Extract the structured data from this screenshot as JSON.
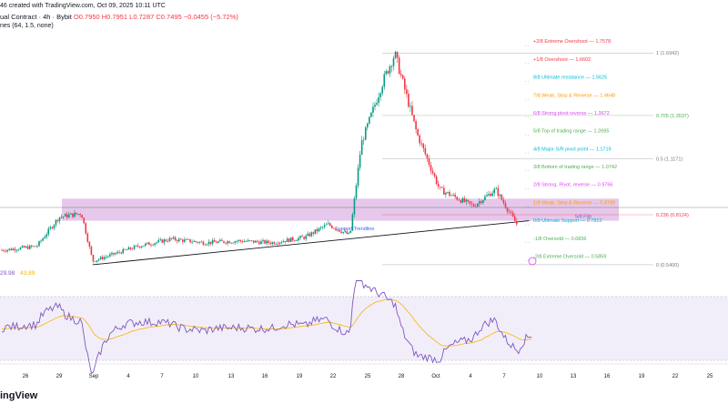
{
  "header": {
    "line1": "46 created with TradingView.com, Oct 09, 2025 10:11 UTC",
    "line2_title": "ual Contract · 4h · Bybit",
    "line2_ohlc": "O0.7950 H0.7951 L0.7287 C0.7495 −0.0455 (−5.72%)",
    "line3": "nes (64, 1.5, none)"
  },
  "rsi": {
    "value": "29.98",
    "ma_value": "43.89"
  },
  "brand": "ingView",
  "chart_data": {
    "type": "candlestick",
    "title": "",
    "xlabel": "",
    "ylabel": "",
    "x_tick_labels": [
      "26",
      "29",
      "Sep",
      "4",
      "7",
      "10",
      "13",
      "16",
      "19",
      "22",
      "25",
      "28",
      "Oct",
      "4",
      "7",
      "10",
      "13",
      "16",
      "19",
      "22",
      "25"
    ],
    "approx_price_path": [
      {
        "date": "Aug 24",
        "price": 0.62
      },
      {
        "date": "Aug 27",
        "price": 0.64
      },
      {
        "date": "Aug 29",
        "price": 0.8
      },
      {
        "date": "Aug 31",
        "price": 0.82
      },
      {
        "date": "Sep 1",
        "price": 0.56
      },
      {
        "date": "Sep 5",
        "price": 0.64
      },
      {
        "date": "Sep 8",
        "price": 0.68
      },
      {
        "date": "Sep 11",
        "price": 0.66
      },
      {
        "date": "Sep 14",
        "price": 0.67
      },
      {
        "date": "Sep 17",
        "price": 0.66
      },
      {
        "date": "Sep 20",
        "price": 0.69
      },
      {
        "date": "Sep 22",
        "price": 0.76
      },
      {
        "date": "Sep 24",
        "price": 0.7
      },
      {
        "date": "Sep 25",
        "price": 1.2
      },
      {
        "date": "Sep 27",
        "price": 1.55
      },
      {
        "date": "Sep 28",
        "price": 1.69
      },
      {
        "date": "Sep 30",
        "price": 1.25
      },
      {
        "date": "Oct 2",
        "price": 0.95
      },
      {
        "date": "Oct 5",
        "price": 0.86
      },
      {
        "date": "Oct 7",
        "price": 0.95
      },
      {
        "date": "Oct 9",
        "price": 0.75
      }
    ],
    "murrey_levels": [
      {
        "label": "+2/8 Extreme Overshoot",
        "value": 1.7578,
        "color": "#f23645"
      },
      {
        "label": "+1/8 Overshoot",
        "value": 1.6602,
        "color": "#f23645"
      },
      {
        "label": "8/8 Ultimate resistance",
        "value": 1.5625,
        "color": "#00bcd4"
      },
      {
        "label": "7/8 Weak, Stop & Reverse",
        "value": 1.4648,
        "color": "#ff9800"
      },
      {
        "label": "6/8 Strong pivot reverse",
        "value": 1.3672,
        "color": "#e040fb"
      },
      {
        "label": "5/8 Top of trading range",
        "value": 1.2695,
        "color": "#4caf50"
      },
      {
        "label": "4/8 Major S/R pivot point",
        "value": 1.1719,
        "color": "#00bcd4"
      },
      {
        "label": "3/8 Bottom of trading range",
        "value": 1.0742,
        "color": "#4caf50"
      },
      {
        "label": "2/8 Strong, Pivot, reverse",
        "value": 0.9766,
        "color": "#e040fb"
      },
      {
        "label": "1/8 Weak, Stop & Reverse",
        "value": 0.8789,
        "color": "#ff9800"
      },
      {
        "label": "0/8 Ultimate Support",
        "value": 0.7812,
        "color": "#00bcd4"
      },
      {
        "label": "-1/8 Oversold",
        "value": 0.6836,
        "color": "#4caf50"
      },
      {
        "label": "-2/8 Extreme Oversold",
        "value": 0.5859,
        "color": "#4caf50"
      }
    ],
    "fib_levels": [
      {
        "label": "1 (1.6942)",
        "value": 1.6942,
        "color": "#787b86"
      },
      {
        "label": "0.705 (1.3537)",
        "value": 1.3537,
        "color": "#4caf50"
      },
      {
        "label": "0.5 (1.1171)",
        "value": 1.1171,
        "color": "#787b86"
      },
      {
        "label": "0.236 (0.8124)",
        "value": 0.8124,
        "color": "#f23645"
      },
      {
        "label": "0 (0.5400)",
        "value": 0.54,
        "color": "#787b86"
      }
    ],
    "zone": {
      "label": "5/8 Flip",
      "low": 0.78,
      "high": 0.9,
      "color": "#ce93d8"
    },
    "support_trendline": {
      "label": "Support Trendline",
      "start": {
        "date": "Sep 1",
        "price": 0.54
      },
      "end": {
        "date": "Oct 10",
        "price": 0.78
      }
    },
    "rsi_series": {
      "range": [
        0,
        100
      ],
      "upper_band": 70,
      "lower_band": 30,
      "last": 29.98,
      "ma_last": 43.89
    },
    "colors": {
      "up": "#089981",
      "down": "#f23645",
      "rsi": "#7e57c2",
      "rsi_ma": "#f7b500",
      "zone": "#e1bee7"
    }
  }
}
